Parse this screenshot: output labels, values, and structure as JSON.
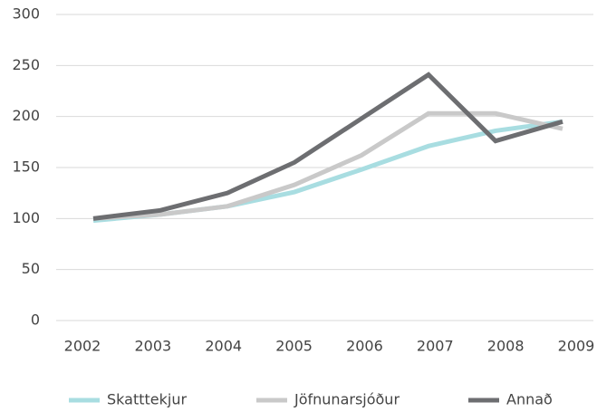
{
  "chart_data": {
    "type": "line",
    "categories": [
      "2002",
      "2003",
      "2004",
      "2005",
      "2006",
      "2007",
      "2008",
      "2009"
    ],
    "series": [
      {
        "name": "Skatttekjur",
        "color": "#a8dde1",
        "values": [
          98,
          104,
          112,
          126,
          148,
          171,
          186,
          195
        ]
      },
      {
        "name": "Jöfnunarsjóður",
        "color": "#c9c9c9",
        "values": [
          100,
          104,
          112,
          133,
          162,
          203,
          203,
          188
        ]
      },
      {
        "name": "Annað",
        "color": "#6d6e71",
        "values": [
          100,
          108,
          125,
          155,
          198,
          241,
          176,
          195
        ]
      }
    ],
    "ylim": [
      0,
      300
    ],
    "yticks": [
      0,
      50,
      100,
      150,
      200,
      250,
      300
    ],
    "grid": true,
    "legend": "bottom"
  }
}
